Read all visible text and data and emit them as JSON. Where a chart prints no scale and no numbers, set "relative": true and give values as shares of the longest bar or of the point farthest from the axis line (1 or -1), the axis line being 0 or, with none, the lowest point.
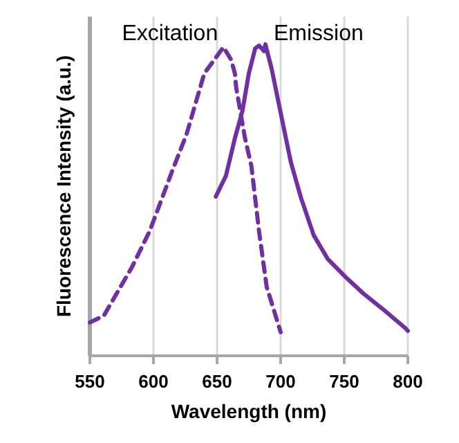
{
  "chart_data": {
    "type": "line",
    "relative": true,
    "xlabel": "Wavelength (nm)",
    "ylabel": "Fluorescence Intensity (a.u.)",
    "xlim": [
      550,
      800
    ],
    "xticks": [
      550,
      600,
      650,
      700,
      750,
      800
    ],
    "grid": "x",
    "marker": "none",
    "series": [
      {
        "name": "Excitation",
        "color": "#7030a0",
        "line_style": "dashed",
        "x": [
          550,
          561,
          583,
          597,
          615,
          626,
          640,
          648,
          655,
          661,
          664,
          665,
          672,
          677,
          683,
          689,
          700
        ],
        "values": [
          0.107,
          0.129,
          0.284,
          0.4,
          0.596,
          0.711,
          0.907,
          0.951,
          0.991,
          0.951,
          0.907,
          0.862,
          0.698,
          0.609,
          0.4,
          0.222,
          0.076
        ]
      },
      {
        "name": "Emission",
        "color": "#7030a0",
        "line_style": "solid",
        "x": [
          649,
          657,
          664,
          670,
          675,
          680,
          683,
          687,
          688,
          693,
          699,
          708,
          716,
          726,
          737,
          751,
          765,
          780,
          798,
          800
        ],
        "values": [
          0.511,
          0.578,
          0.698,
          0.787,
          0.907,
          0.987,
          0.996,
          0.978,
          1,
          0.92,
          0.8,
          0.622,
          0.507,
          0.387,
          0.311,
          0.253,
          0.2,
          0.151,
          0.089,
          0.08
        ]
      }
    ]
  }
}
